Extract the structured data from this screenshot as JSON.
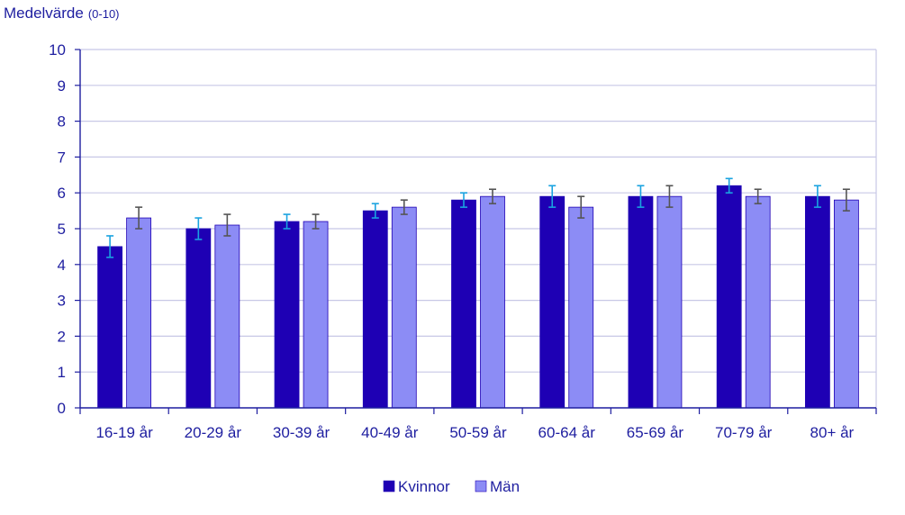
{
  "chart_data": {
    "type": "bar",
    "ylabel": "Medelvärde",
    "ylabel_unit": "(0-10)",
    "ylim": [
      0,
      10
    ],
    "yticks": [
      "0",
      "1",
      "2",
      "3",
      "4",
      "5",
      "6",
      "7",
      "8",
      "9",
      "10"
    ],
    "grid": true,
    "legend_position": "bottom-center",
    "categories": [
      "16-19 år",
      "20-29 år",
      "30-39 år",
      "40-49 år",
      "50-59 år",
      "60-64 år",
      "65-69 år",
      "70-79 år",
      "80+ år"
    ],
    "series": [
      {
        "name": "Kvinnor",
        "color": "#1e00b4",
        "error_color": "#1aa3e0",
        "values": [
          4.5,
          5.0,
          5.2,
          5.5,
          5.8,
          5.9,
          5.9,
          6.2,
          5.9
        ],
        "error_low": [
          4.2,
          4.7,
          5.0,
          5.3,
          5.6,
          5.6,
          5.6,
          6.0,
          5.6
        ],
        "error_high": [
          4.8,
          5.3,
          5.4,
          5.7,
          6.0,
          6.2,
          6.2,
          6.4,
          6.2
        ]
      },
      {
        "name": "Män",
        "color": "#8c8cf5",
        "error_color": "#555555",
        "values": [
          5.3,
          5.1,
          5.2,
          5.6,
          5.9,
          5.6,
          5.9,
          5.9,
          5.8
        ],
        "error_low": [
          5.0,
          4.8,
          5.0,
          5.4,
          5.7,
          5.3,
          5.6,
          5.7,
          5.5
        ],
        "error_high": [
          5.6,
          5.4,
          5.4,
          5.8,
          6.1,
          5.9,
          6.2,
          6.1,
          6.1
        ]
      }
    ],
    "colors": {
      "axis": "#1e1ea0",
      "grid": "#c8c8e6",
      "text": "#1e1ea0"
    }
  }
}
